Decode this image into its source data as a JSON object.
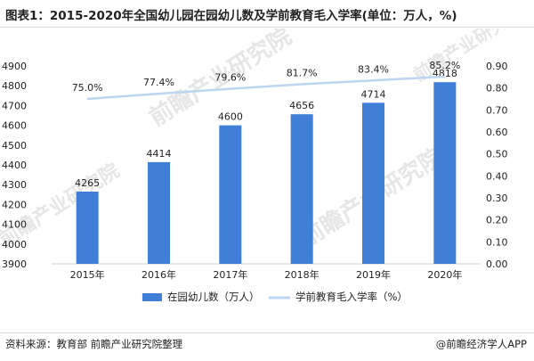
{
  "title": "图表1：2015-2020年全国幼儿园在园幼儿数及学前教育毛入学率(单位：万人，%)",
  "source": "资料来源：教育部 前瞻产业研究院整理",
  "brand": "@前瞻经济学人APP",
  "colors": {
    "bar": "#3f7fd8",
    "line": "#bcd6f2",
    "axis": "#d0d0d0",
    "text": "#222222"
  },
  "chart_data": {
    "type": "bar",
    "categories": [
      "2015年",
      "2016年",
      "2017年",
      "2018年",
      "2019年",
      "2020年"
    ],
    "series": [
      {
        "name": "在园幼儿数（万人）",
        "type": "bar",
        "axis": "left",
        "values": [
          4265,
          4414,
          4600,
          4656,
          4714,
          4818
        ],
        "labels": [
          "4265",
          "4414",
          "4600",
          "4656",
          "4714",
          "4818"
        ]
      },
      {
        "name": "学前教育毛入学率（%）",
        "type": "line",
        "axis": "right",
        "values": [
          0.75,
          0.774,
          0.796,
          0.817,
          0.834,
          0.852
        ],
        "labels": [
          "75.0%",
          "77.4%",
          "79.6%",
          "81.7%",
          "83.4%",
          "85.2%"
        ]
      }
    ],
    "y_left": {
      "ylim": [
        3900,
        4900
      ],
      "ticks": [
        "3900",
        "4000",
        "4100",
        "4200",
        "4300",
        "4400",
        "4500",
        "4600",
        "4700",
        "4800",
        "4900"
      ]
    },
    "y_right": {
      "ylim": [
        0.0,
        0.9
      ],
      "ticks": [
        "0.00",
        "0.10",
        "0.20",
        "0.30",
        "0.40",
        "0.50",
        "0.60",
        "0.70",
        "0.80",
        "0.90"
      ]
    },
    "grid": false,
    "legend": "bottom-center"
  }
}
